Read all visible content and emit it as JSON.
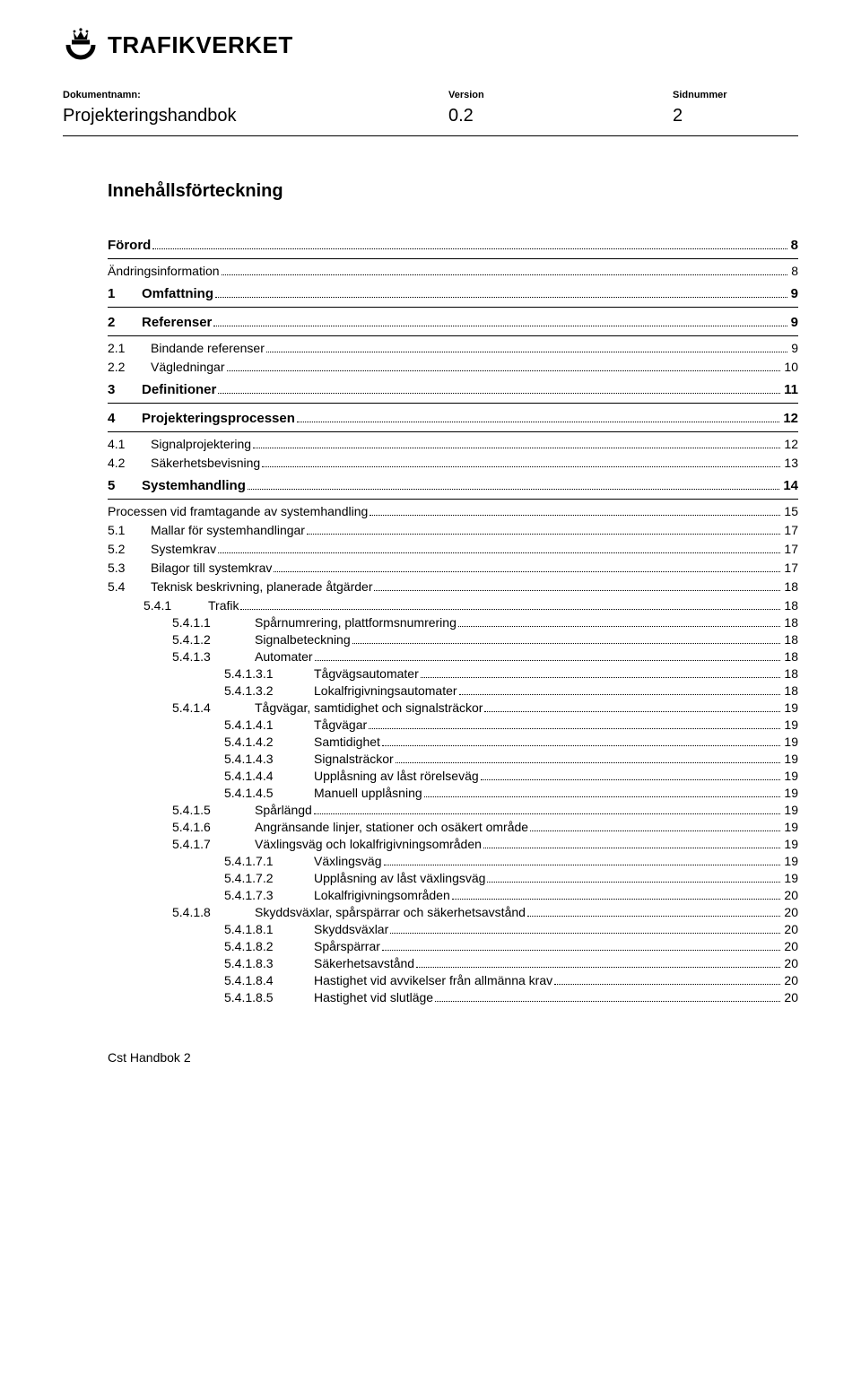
{
  "logo_text": "TRAFIKVERKET",
  "header": {
    "labels": {
      "name": "Dokumentnamn:",
      "version": "Version",
      "page": "Sidnummer"
    },
    "values": {
      "name": "Projekteringshandbok",
      "version": "0.2",
      "page": "2"
    }
  },
  "heading": "Innehållsförteckning",
  "toc": [
    {
      "num": "",
      "title": "Förord",
      "page": "8",
      "level": 0,
      "indent": "0n",
      "bold": true,
      "sep_after": true
    },
    {
      "num": "",
      "title": "Ändringsinformation",
      "page": "8",
      "level": 1,
      "indent": "1n"
    },
    {
      "num": "1",
      "title": "Omfattning",
      "page": "9",
      "level": 0,
      "indent": "0",
      "bold": true,
      "sep_after": true
    },
    {
      "num": "2",
      "title": "Referenser",
      "page": "9",
      "level": 0,
      "indent": "0",
      "bold": true,
      "sep_after": true
    },
    {
      "num": "2.1",
      "title": "Bindande referenser",
      "page": "9",
      "level": 1,
      "indent": "1"
    },
    {
      "num": "2.2",
      "title": "Vägledningar",
      "page": "10",
      "level": 1,
      "indent": "1"
    },
    {
      "num": "3",
      "title": "Definitioner",
      "page": "11",
      "level": 0,
      "indent": "0",
      "bold": true,
      "sep_after": true
    },
    {
      "num": "4",
      "title": "Projekteringsprocessen",
      "page": "12",
      "level": 0,
      "indent": "0",
      "bold": true,
      "sep_after": true
    },
    {
      "num": "4.1",
      "title": "Signalprojektering",
      "page": "12",
      "level": 1,
      "indent": "1"
    },
    {
      "num": "4.2",
      "title": "Säkerhetsbevisning",
      "page": "13",
      "level": 1,
      "indent": "1"
    },
    {
      "num": "5",
      "title": "Systemhandling",
      "page": "14",
      "level": 0,
      "indent": "0",
      "bold": true,
      "sep_after": true
    },
    {
      "num": "",
      "title": "Processen vid framtagande av systemhandling",
      "page": "15",
      "level": 1,
      "indent": "1n"
    },
    {
      "num": "5.1",
      "title": "Mallar för systemhandlingar",
      "page": "17",
      "level": 1,
      "indent": "1"
    },
    {
      "num": "5.2",
      "title": "Systemkrav",
      "page": "17",
      "level": 1,
      "indent": "1"
    },
    {
      "num": "5.3",
      "title": "Bilagor till systemkrav",
      "page": "17",
      "level": 1,
      "indent": "1"
    },
    {
      "num": "5.4",
      "title": "Teknisk beskrivning, planerade åtgärder",
      "page": "18",
      "level": 1,
      "indent": "1"
    },
    {
      "num": "5.4.1",
      "title": "Trafik",
      "page": "18",
      "level": 2,
      "indent": "2"
    },
    {
      "num": "5.4.1.1",
      "title": "Spårnumrering, plattformsnumrering",
      "page": "18",
      "level": 3,
      "indent": "3"
    },
    {
      "num": "5.4.1.2",
      "title": "Signalbeteckning",
      "page": "18",
      "level": 3,
      "indent": "3"
    },
    {
      "num": "5.4.1.3",
      "title": "Automater",
      "page": "18",
      "level": 3,
      "indent": "3"
    },
    {
      "num": "5.4.1.3.1",
      "title": "Tågvägsautomater",
      "page": "18",
      "level": 4,
      "indent": "4"
    },
    {
      "num": "5.4.1.3.2",
      "title": "Lokalfrigivningsautomater",
      "page": "18",
      "level": 4,
      "indent": "4"
    },
    {
      "num": "5.4.1.4",
      "title": "Tågvägar, samtidighet och signalsträckor",
      "page": "19",
      "level": 3,
      "indent": "3"
    },
    {
      "num": "5.4.1.4.1",
      "title": "Tågvägar",
      "page": "19",
      "level": 4,
      "indent": "4"
    },
    {
      "num": "5.4.1.4.2",
      "title": "Samtidighet",
      "page": "19",
      "level": 4,
      "indent": "4"
    },
    {
      "num": "5.4.1.4.3",
      "title": "Signalsträckor",
      "page": "19",
      "level": 4,
      "indent": "4"
    },
    {
      "num": "5.4.1.4.4",
      "title": "Upplåsning av låst rörelseväg",
      "page": "19",
      "level": 4,
      "indent": "4"
    },
    {
      "num": "5.4.1.4.5",
      "title": "Manuell upplåsning",
      "page": "19",
      "level": 4,
      "indent": "4"
    },
    {
      "num": "5.4.1.5",
      "title": "Spårlängd",
      "page": "19",
      "level": 3,
      "indent": "3"
    },
    {
      "num": "5.4.1.6",
      "title": "Angränsande linjer, stationer och osäkert område",
      "page": "19",
      "level": 3,
      "indent": "3"
    },
    {
      "num": "5.4.1.7",
      "title": "Växlingsväg och lokalfrigivningsområden",
      "page": "19",
      "level": 3,
      "indent": "3"
    },
    {
      "num": "5.4.1.7.1",
      "title": "Växlingsväg",
      "page": "19",
      "level": 4,
      "indent": "4"
    },
    {
      "num": "5.4.1.7.2",
      "title": "Upplåsning av låst växlingsväg",
      "page": "19",
      "level": 4,
      "indent": "4"
    },
    {
      "num": "5.4.1.7.3",
      "title": "Lokalfrigivningsområden",
      "page": "20",
      "level": 4,
      "indent": "4"
    },
    {
      "num": "5.4.1.8",
      "title": "Skyddsväxlar, spårspärrar och säkerhetsavstånd",
      "page": "20",
      "level": 3,
      "indent": "3"
    },
    {
      "num": "5.4.1.8.1",
      "title": "Skyddsväxlar",
      "page": "20",
      "level": 4,
      "indent": "4"
    },
    {
      "num": "5.4.1.8.2",
      "title": "Spårspärrar",
      "page": "20",
      "level": 4,
      "indent": "4"
    },
    {
      "num": "5.4.1.8.3",
      "title": "Säkerhetsavstånd",
      "page": "20",
      "level": 4,
      "indent": "4"
    },
    {
      "num": "5.4.1.8.4",
      "title": "Hastighet vid avvikelser från allmänna krav",
      "page": "20",
      "level": 4,
      "indent": "4"
    },
    {
      "num": "5.4.1.8.5",
      "title": "Hastighet vid slutläge",
      "page": "20",
      "level": 4,
      "indent": "4"
    }
  ],
  "footer": "Cst Handbok 2"
}
